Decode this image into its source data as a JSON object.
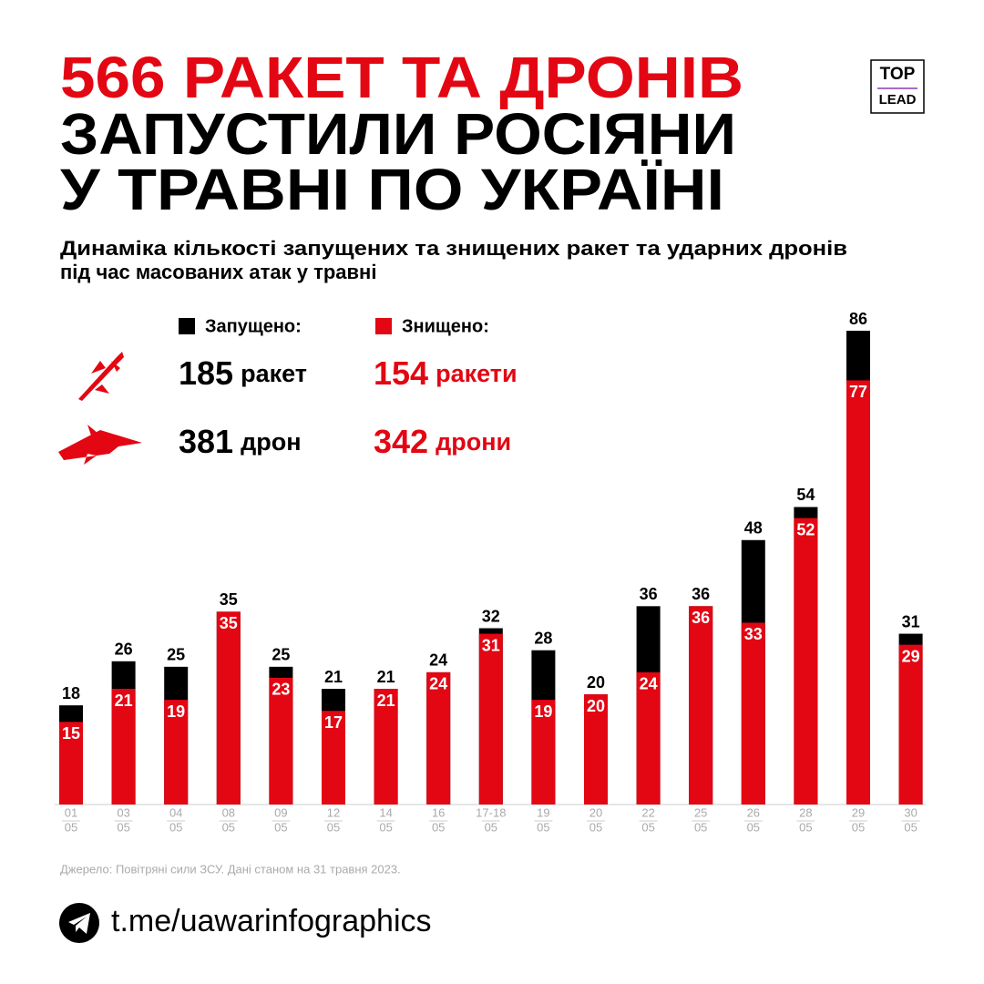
{
  "header": {
    "title_lines": [
      "566 РАКЕТ ТА ДРОНІВ",
      "ЗАПУСТИЛИ РОСІЯНИ",
      "У ТРАВНІ ПО УКРАЇНІ"
    ],
    "subtitle_lines": [
      "Динаміка кількості запущених та знищених ракет та ударних дронів",
      "під час масованих атак у травні"
    ],
    "logo": [
      "TOP",
      "LEAD"
    ]
  },
  "summary": {
    "rows": [
      {
        "launched": 185,
        "launched_unit": "ракет",
        "destroyed": 154,
        "destroyed_unit": "ракети"
      },
      {
        "launched": 381,
        "launched_unit": "дрон",
        "destroyed": 342,
        "destroyed_unit": "дрони"
      }
    ]
  },
  "chart_data": {
    "type": "bar",
    "categories": [
      [
        "01",
        "05"
      ],
      [
        "03",
        "05"
      ],
      [
        "04",
        "05"
      ],
      [
        "08",
        "05"
      ],
      [
        "09",
        "05"
      ],
      [
        "12",
        "05"
      ],
      [
        "14",
        "05"
      ],
      [
        "16",
        "05"
      ],
      [
        "17-18",
        "05"
      ],
      [
        "19",
        "05"
      ],
      [
        "20",
        "05"
      ],
      [
        "22",
        "05"
      ],
      [
        "25",
        "05"
      ],
      [
        "26",
        "05"
      ],
      [
        "28",
        "05"
      ],
      [
        "29",
        "05"
      ],
      [
        "30",
        "05"
      ]
    ],
    "series": [
      {
        "name": "Запущено:",
        "color": "#000000",
        "values": [
          18,
          26,
          25,
          35,
          25,
          21,
          21,
          24,
          32,
          28,
          20,
          36,
          36,
          48,
          54,
          86,
          31
        ]
      },
      {
        "name": "Знищено:",
        "color": "#e30613",
        "values": [
          15,
          21,
          19,
          35,
          23,
          17,
          21,
          24,
          31,
          19,
          20,
          24,
          36,
          33,
          52,
          77,
          29
        ]
      }
    ]
  },
  "footer": {
    "source": "Джерело: Повітряні сили ЗСУ. Дані станом на 31 травня 2023.",
    "link": "t.me/uawarinfographics"
  }
}
